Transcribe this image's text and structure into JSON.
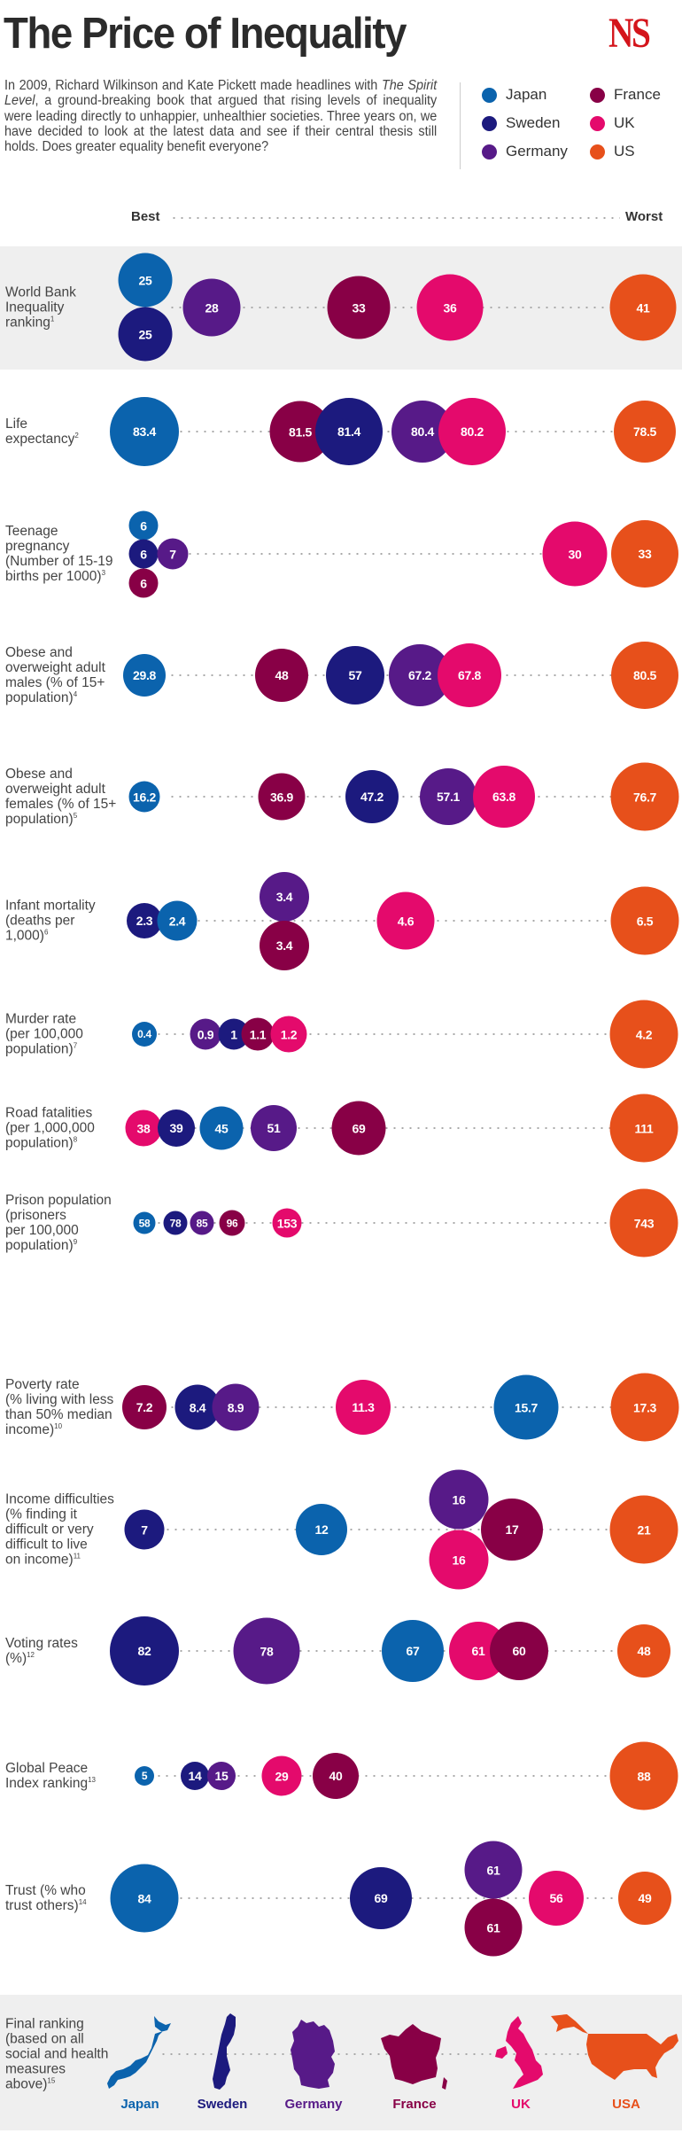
{
  "header": {
    "title": "The Price of Inequality",
    "logo": "NS",
    "intro_before": "In 2009, Richard Wilkinson and Kate Pickett made headlines with ",
    "intro_book": "The Spirit Level",
    "intro_after": ", a ground-breaking book that argued that rising levels of inequality were leading directly to unhappier, unhealthier societies. Three years on, we have decided to look at the latest data and see if their central thesis still holds. Does greater equality benefit everyone?"
  },
  "legend": [
    {
      "key": "japan",
      "label": "Japan",
      "color": "#0b63ad"
    },
    {
      "key": "sweden",
      "label": "Sweden",
      "color": "#1c1a7e"
    },
    {
      "key": "germany",
      "label": "Germany",
      "color": "#571a88"
    },
    {
      "key": "france",
      "label": "France",
      "color": "#880046"
    },
    {
      "key": "uk",
      "label": "UK",
      "color": "#e40a6c"
    },
    {
      "key": "us",
      "label": "US",
      "color": "#e7501b"
    }
  ],
  "scale": {
    "best": "Best",
    "worst": "Worst"
  },
  "chart_data": {
    "type": "bubble-dotplot",
    "title": "The Price of Inequality",
    "xlabel": "Best → Worst",
    "series_order": [
      "Japan",
      "Sweden",
      "Germany",
      "France",
      "UK",
      "US"
    ],
    "metrics": [
      {
        "label": "World Bank Inequality ranking",
        "note": "1",
        "values": {
          "Japan": "25",
          "Sweden": "25",
          "Germany": "28",
          "France": "33",
          "UK": "36",
          "US": "41"
        }
      },
      {
        "label": "Life expectancy",
        "note": "2",
        "values": {
          "Japan": "83.4",
          "France": "81.5",
          "Sweden": "81.4",
          "Germany": "80.4",
          "UK": "80.2",
          "US": "78.5"
        }
      },
      {
        "label": "Teenage pregnancy (Number of 15-19 births per 1000)",
        "note": "3",
        "values": {
          "Japan": "6",
          "Sweden": "6",
          "France": "6",
          "Germany": "7",
          "UK": "30",
          "US": "33"
        }
      },
      {
        "label": "Obese and overweight adult males (% of 15+ population)",
        "note": "4",
        "values": {
          "Japan": "29.8",
          "France": "48",
          "Sweden": "57",
          "Germany": "67.2",
          "UK": "67.8",
          "US": "80.5"
        }
      },
      {
        "label": "Obese and overweight adult females (% of 15+ population)",
        "note": "5",
        "values": {
          "Japan": "16.2",
          "France": "36.9",
          "Sweden": "47.2",
          "Germany": "57.1",
          "UK": "63.8",
          "US": "76.7"
        }
      },
      {
        "label": "Infant mortality (deaths per 1,000)",
        "note": "6",
        "values": {
          "Sweden": "2.3",
          "Japan": "2.4",
          "Germany": "3.4",
          "France": "3.4",
          "UK": "4.6",
          "US": "6.5"
        }
      },
      {
        "label": "Murder rate (per 100,000 population)",
        "note": "7",
        "values": {
          "Japan": "0.4",
          "Germany": "0.9",
          "Sweden": "1",
          "France": "1.1",
          "UK": "1.2",
          "US": "4.2"
        }
      },
      {
        "label": "Road fatalities (per 1,000,000 population)",
        "note": "8",
        "values": {
          "UK": "38",
          "Sweden": "39",
          "Japan": "45",
          "Germany": "51",
          "France": "69",
          "US": "111"
        }
      },
      {
        "label": "Prison population (prisoners per 100,000 population)",
        "note": "9",
        "values": {
          "Japan": "58",
          "Sweden": "78",
          "Germany": "85",
          "France": "96",
          "UK": "153",
          "US": "743"
        }
      },
      {
        "label": "Poverty rate (% living with less than 50% median income)",
        "note": "10",
        "values": {
          "France": "7.2",
          "Sweden": "8.4",
          "Germany": "8.9",
          "UK": "11.3",
          "Japan": "15.7",
          "US": "17.3"
        }
      },
      {
        "label": "Income difficulties (% finding it difficult or very difficult to live on income)",
        "note": "11",
        "values": {
          "Sweden": "7",
          "Japan": "12",
          "Germany": "16",
          "UK": "16",
          "France": "17",
          "US": "21"
        }
      },
      {
        "label": "Voting rates (%)",
        "note": "12",
        "values": {
          "Sweden": "82",
          "Germany": "78",
          "Japan": "67",
          "UK": "61",
          "France": "60",
          "US": "48"
        }
      },
      {
        "label": "Global Peace Index ranking",
        "note": "13",
        "values": {
          "Japan": "5",
          "Sweden": "14",
          "Germany": "15",
          "UK": "29",
          "France": "40",
          "US": "88"
        }
      },
      {
        "label": "Trust (% who trust others)",
        "note": "14",
        "values": {
          "Japan": "84",
          "Sweden": "69",
          "Germany": "61",
          "France": "61",
          "UK": "56",
          "US": "49"
        }
      }
    ],
    "final_ranking": {
      "label": "Final ranking (based on all social and health measures above)",
      "note": "15",
      "order": [
        "Japan",
        "Sweden",
        "Germany",
        "France",
        "UK",
        "USA"
      ]
    }
  },
  "rows": [
    {
      "lines": [
        "World Bank",
        "Inequality",
        "ranking"
      ],
      "note": "1",
      "band": true,
      "bubbles": [
        {
          "c": "japan",
          "v": "25"
        },
        {
          "c": "sweden",
          "v": "25"
        },
        {
          "c": "germany",
          "v": "28"
        },
        {
          "c": "france",
          "v": "33"
        },
        {
          "c": "uk",
          "v": "36"
        },
        {
          "c": "us",
          "v": "41"
        }
      ]
    },
    {
      "lines": [
        "Life",
        "expectancy"
      ],
      "note": "2",
      "bubbles": [
        {
          "c": "japan",
          "v": "83.4"
        },
        {
          "c": "france",
          "v": "81.5"
        },
        {
          "c": "sweden",
          "v": "81.4"
        },
        {
          "c": "germany",
          "v": "80.4"
        },
        {
          "c": "uk",
          "v": "80.2"
        },
        {
          "c": "us",
          "v": "78.5"
        }
      ]
    },
    {
      "lines": [
        "Teenage",
        "pregnancy",
        "(Number of 15-19",
        "births per 1000)"
      ],
      "note": "3",
      "bubbles": [
        {
          "c": "japan",
          "v": "6"
        },
        {
          "c": "sweden",
          "v": "6"
        },
        {
          "c": "france",
          "v": "6"
        },
        {
          "c": "germany",
          "v": "7"
        },
        {
          "c": "uk",
          "v": "30"
        },
        {
          "c": "us",
          "v": "33"
        }
      ]
    },
    {
      "lines": [
        "Obese and",
        "overweight adult",
        "males (% of 15+",
        "population)"
      ],
      "note": "4",
      "bubbles": [
        {
          "c": "japan",
          "v": "29.8"
        },
        {
          "c": "france",
          "v": "48"
        },
        {
          "c": "sweden",
          "v": "57"
        },
        {
          "c": "germany",
          "v": "67.2"
        },
        {
          "c": "uk",
          "v": "67.8"
        },
        {
          "c": "us",
          "v": "80.5"
        }
      ]
    },
    {
      "lines": [
        "Obese and",
        "overweight adult",
        "females (% of 15+",
        "population)"
      ],
      "note": "5",
      "bubbles": [
        {
          "c": "japan",
          "v": "16.2"
        },
        {
          "c": "france",
          "v": "36.9"
        },
        {
          "c": "sweden",
          "v": "47.2"
        },
        {
          "c": "germany",
          "v": "57.1"
        },
        {
          "c": "uk",
          "v": "63.8"
        },
        {
          "c": "us",
          "v": "76.7"
        }
      ]
    },
    {
      "lines": [
        "Infant mortality",
        "(deaths per",
        "1,000)"
      ],
      "note": "6",
      "bubbles": [
        {
          "c": "sweden",
          "v": "2.3"
        },
        {
          "c": "japan",
          "v": "2.4"
        },
        {
          "c": "germany",
          "v": "3.4"
        },
        {
          "c": "france",
          "v": "3.4"
        },
        {
          "c": "uk",
          "v": "4.6"
        },
        {
          "c": "us",
          "v": "6.5"
        }
      ]
    },
    {
      "lines": [
        "Murder rate",
        "(per 100,000",
        "population)"
      ],
      "note": "7",
      "bubbles": [
        {
          "c": "japan",
          "v": "0.4"
        },
        {
          "c": "germany",
          "v": "0.9"
        },
        {
          "c": "sweden",
          "v": "1"
        },
        {
          "c": "france",
          "v": "1.1"
        },
        {
          "c": "uk",
          "v": "1.2"
        },
        {
          "c": "us",
          "v": "4.2"
        }
      ]
    },
    {
      "lines": [
        "Road fatalities",
        "(per 1,000,000",
        "population)"
      ],
      "note": "8",
      "bubbles": [
        {
          "c": "uk",
          "v": "38"
        },
        {
          "c": "sweden",
          "v": "39"
        },
        {
          "c": "japan",
          "v": "45"
        },
        {
          "c": "germany",
          "v": "51"
        },
        {
          "c": "france",
          "v": "69"
        },
        {
          "c": "us",
          "v": "111"
        }
      ]
    },
    {
      "lines": [
        "Prison population",
        "(prisoners",
        "per 100,000",
        "population)"
      ],
      "note": "9",
      "bubbles": [
        {
          "c": "japan",
          "v": "58"
        },
        {
          "c": "sweden",
          "v": "78"
        },
        {
          "c": "germany",
          "v": "85"
        },
        {
          "c": "france",
          "v": "96"
        },
        {
          "c": "uk",
          "v": "153"
        },
        {
          "c": "us",
          "v": "743"
        }
      ]
    },
    {
      "lines": [
        "Poverty rate",
        "(% living with less",
        "than 50% median",
        "income)"
      ],
      "note": "10",
      "bubbles": [
        {
          "c": "france",
          "v": "7.2"
        },
        {
          "c": "sweden",
          "v": "8.4"
        },
        {
          "c": "germany",
          "v": "8.9"
        },
        {
          "c": "uk",
          "v": "11.3"
        },
        {
          "c": "japan",
          "v": "15.7"
        },
        {
          "c": "us",
          "v": "17.3"
        }
      ]
    },
    {
      "lines": [
        "Income difficulties",
        "(% finding it",
        "difficult or very",
        "difficult to live",
        "on income)"
      ],
      "note": "11",
      "bubbles": [
        {
          "c": "sweden",
          "v": "7"
        },
        {
          "c": "japan",
          "v": "12"
        },
        {
          "c": "germany",
          "v": "16"
        },
        {
          "c": "uk",
          "v": "16"
        },
        {
          "c": "france",
          "v": "17"
        },
        {
          "c": "us",
          "v": "21"
        }
      ]
    },
    {
      "lines": [
        "Voting rates",
        "(%)"
      ],
      "note": "12",
      "bubbles": [
        {
          "c": "sweden",
          "v": "82"
        },
        {
          "c": "germany",
          "v": "78"
        },
        {
          "c": "japan",
          "v": "67"
        },
        {
          "c": "uk",
          "v": "61"
        },
        {
          "c": "france",
          "v": "60"
        },
        {
          "c": "us",
          "v": "48"
        }
      ]
    },
    {
      "lines": [
        "Global Peace",
        "Index ranking"
      ],
      "note": "13",
      "bubbles": [
        {
          "c": "japan",
          "v": "5"
        },
        {
          "c": "sweden",
          "v": "14"
        },
        {
          "c": "germany",
          "v": "15"
        },
        {
          "c": "uk",
          "v": "29"
        },
        {
          "c": "france",
          "v": "40"
        },
        {
          "c": "us",
          "v": "88"
        }
      ]
    },
    {
      "lines": [
        "Trust (% who",
        "trust others)"
      ],
      "note": "14",
      "bubbles": [
        {
          "c": "japan",
          "v": "84"
        },
        {
          "c": "sweden",
          "v": "69"
        },
        {
          "c": "germany",
          "v": "61"
        },
        {
          "c": "france",
          "v": "61"
        },
        {
          "c": "uk",
          "v": "56"
        },
        {
          "c": "us",
          "v": "49"
        }
      ]
    }
  ],
  "final": {
    "lines": [
      "Final ranking",
      "(based on all",
      "social and health",
      "measures",
      "above)"
    ],
    "note": "15",
    "countries": [
      {
        "c": "japan",
        "label": "Japan",
        "shape": "japan-map-icon"
      },
      {
        "c": "sweden",
        "label": "Sweden",
        "shape": "sweden-map-icon"
      },
      {
        "c": "germany",
        "label": "Germany",
        "shape": "germany-map-icon"
      },
      {
        "c": "france",
        "label": "France",
        "shape": "france-map-icon"
      },
      {
        "c": "uk",
        "label": "UK",
        "shape": "uk-map-icon"
      },
      {
        "c": "us",
        "label": "USA",
        "shape": "usa-map-icon"
      }
    ]
  }
}
